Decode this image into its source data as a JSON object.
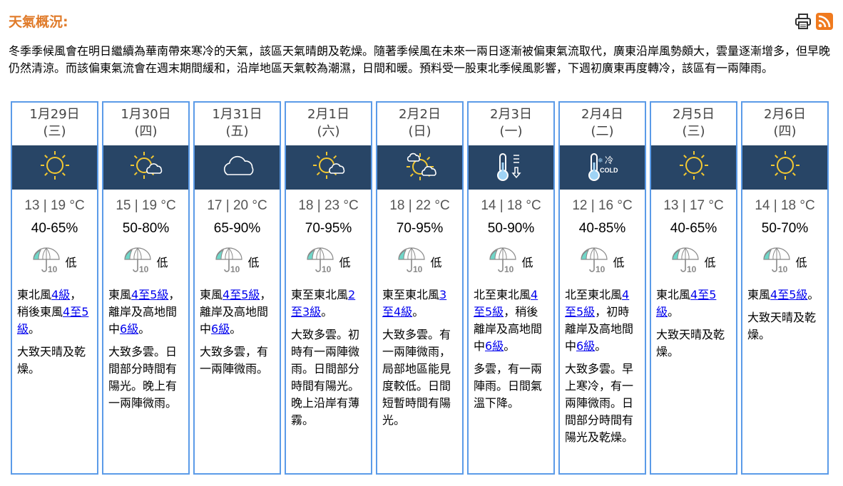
{
  "header": {
    "title": "天氣概況:",
    "print_icon": "printer-icon",
    "rss_icon": "rss-icon",
    "rss_color": "#f07a1e"
  },
  "intro": "冬季季候風會在明日繼續為華南帶來寒冷的天氣，該區天氣晴朗及乾燥。隨著季候風在未來一兩日逐漸被偏東氣流取代，廣東沿岸風勢頗大，雲量逐漸增多，但早晚仍然清涼。而該偏東氣流會在週末期間緩和，沿岸地區天氣較為潮濕，日間和暖。預料受一股東北季候風影響，下週初廣東再度轉冷，該區有一兩陣雨。",
  "colors": {
    "accent": "#e07b2a",
    "band": "#284566",
    "border": "#5b9be8",
    "link": "#0000ee"
  },
  "days": [
    {
      "date": "1月29日",
      "weekday": "(三)",
      "icon": "sunny",
      "temp": "13 | 19 °C",
      "humidity": "40-65%",
      "psr": "低",
      "psr_label": "10",
      "wind": [
        {
          "t": "東北風"
        },
        {
          "l": "4級"
        },
        {
          "t": "，稍後東風"
        },
        {
          "l": "4至5級"
        },
        {
          "t": "。"
        }
      ],
      "desc": "大致天晴及乾燥。"
    },
    {
      "date": "1月30日",
      "weekday": "(四)",
      "icon": "sunny-periods",
      "temp": "15 | 19 °C",
      "humidity": "50-80%",
      "psr": "低",
      "psr_label": "10",
      "wind": [
        {
          "t": "東風"
        },
        {
          "l": "4至5級"
        },
        {
          "t": "，離岸及高地間中"
        },
        {
          "l": "6級"
        },
        {
          "t": "。"
        }
      ],
      "desc": "大致多雲。日間部分時間有陽光。晚上有一兩陣微雨。"
    },
    {
      "date": "1月31日",
      "weekday": "(五)",
      "icon": "cloudy",
      "temp": "17 | 20 °C",
      "humidity": "65-90%",
      "psr": "低",
      "psr_label": "10",
      "wind": [
        {
          "t": "東風"
        },
        {
          "l": "4至5級"
        },
        {
          "t": "，離岸及高地間中"
        },
        {
          "l": "6級"
        },
        {
          "t": "。"
        }
      ],
      "desc": "大致多雲，有一兩陣微雨。"
    },
    {
      "date": "2月1日",
      "weekday": "(六)",
      "icon": "sunny-periods",
      "temp": "18 | 23 °C",
      "humidity": "70-95%",
      "psr": "低",
      "psr_label": "10",
      "wind": [
        {
          "t": "東至東北風"
        },
        {
          "l": "2至3級"
        },
        {
          "t": "。"
        }
      ],
      "desc": "大致多雲。初時有一兩陣微雨。日間部分時間有陽光。晚上沿岸有薄霧。"
    },
    {
      "date": "2月2日",
      "weekday": "(日)",
      "icon": "sunny-intervals",
      "temp": "18 | 22 °C",
      "humidity": "70-95%",
      "psr": "低",
      "psr_label": "10",
      "wind": [
        {
          "t": "東至東北風"
        },
        {
          "l": "3至4級"
        },
        {
          "t": "。"
        }
      ],
      "desc": "大致多雲。有一兩陣微雨，局部地區能見度較低。日間短暫時間有陽光。"
    },
    {
      "date": "2月3日",
      "weekday": "(一)",
      "icon": "cool",
      "temp": "14 | 18 °C",
      "humidity": "50-90%",
      "psr": "低",
      "psr_label": "10",
      "wind": [
        {
          "t": "北至東北風"
        },
        {
          "l": "4至5級"
        },
        {
          "t": "，稍後離岸及高地間中"
        },
        {
          "l": "6級"
        },
        {
          "t": "。"
        }
      ],
      "desc": "多雲，有一兩陣雨。日間氣溫下降。"
    },
    {
      "date": "2月4日",
      "weekday": "(二)",
      "icon": "cold",
      "icon_text_cn": "冷",
      "icon_text_en": "COLD",
      "temp": "12 | 16 °C",
      "humidity": "40-85%",
      "psr": "低",
      "psr_label": "10",
      "wind": [
        {
          "t": "北至東北風"
        },
        {
          "l": "4至5級"
        },
        {
          "t": "，初時離岸及高地間中"
        },
        {
          "l": "6級"
        },
        {
          "t": "。"
        }
      ],
      "desc": "大致多雲。早上寒冷，有一兩陣微雨。日間部分時間有陽光及乾燥。"
    },
    {
      "date": "2月5日",
      "weekday": "(三)",
      "icon": "sunny",
      "temp": "13 | 17 °C",
      "humidity": "40-65%",
      "psr": "低",
      "psr_label": "10",
      "wind": [
        {
          "t": "東北風"
        },
        {
          "l": "4至5級"
        },
        {
          "t": "。"
        }
      ],
      "desc": "大致天晴及乾燥。"
    },
    {
      "date": "2月6日",
      "weekday": "(四)",
      "icon": "sunny",
      "temp": "14 | 18 °C",
      "humidity": "50-70%",
      "psr": "低",
      "psr_label": "10",
      "wind": [
        {
          "t": "東風"
        },
        {
          "l": "4至5級"
        },
        {
          "t": "。"
        }
      ],
      "desc": "大致天晴及乾燥。"
    }
  ]
}
